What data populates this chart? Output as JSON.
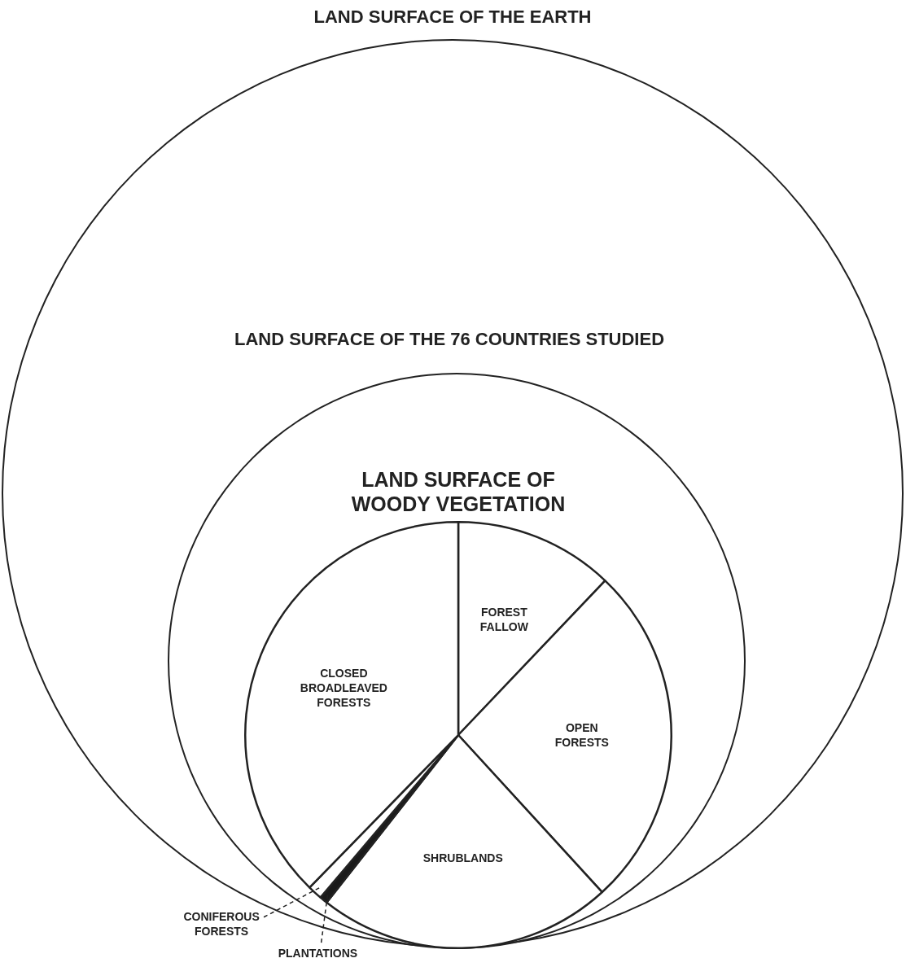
{
  "chart_data": {
    "type": "pie",
    "title": "LAND SURFACE OF WOODY VEGETATION",
    "categories": [
      "FOREST FALLOW",
      "OPEN FORESTS",
      "SHRUBLANDS",
      "PLANTATIONS",
      "CONIFEROUS FORESTS",
      "CLOSED BROADLEAVED FORESTS"
    ],
    "values": [
      12.1,
      26.1,
      22.4,
      0.6,
      1.1,
      37.7
    ],
    "colors": [
      "#ffffff",
      "#ffffff",
      "#ffffff",
      "#1a1a1a",
      "#ffffff",
      "#ffffff"
    ],
    "annotations": [
      "LAND SURFACE OF THE EARTH",
      "LAND SURFACE OF THE 76 COUNTRIES STUDIED"
    ],
    "legend": false
  }
}
